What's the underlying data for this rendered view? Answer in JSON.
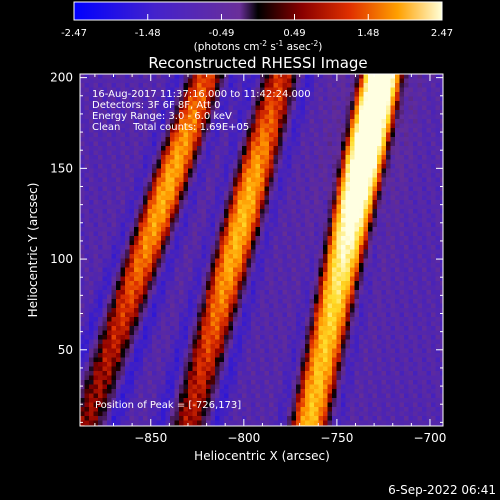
{
  "colorbar": {
    "ticks": [
      "-2.47",
      "-1.48",
      "-0.49",
      "0.49",
      "1.48",
      "2.47"
    ],
    "tick_values": [
      -2.47,
      -1.48,
      -0.49,
      0.49,
      1.48,
      2.47
    ],
    "range": [
      -2.47,
      2.47
    ],
    "unit_label": "(photons cm",
    "unit_exp1": "-2",
    "unit_mid": " s",
    "unit_exp2": "-1",
    "unit_mid2": " asec",
    "unit_exp3": "-2",
    "unit_end": ")"
  },
  "chart_data": {
    "type": "heatmap",
    "title": "Reconstructed RHESSI Image",
    "xlabel": "Heliocentric X (arcsec)",
    "ylabel": "Heliocentric Y (arcsec)",
    "xlim": [
      -888,
      -693
    ],
    "ylim": [
      8,
      202
    ],
    "x_ticks": [
      -850,
      -800,
      -750,
      -700
    ],
    "x_tick_labels": [
      "−850",
      "−800",
      "−750",
      "−700"
    ],
    "y_ticks": [
      50,
      100,
      150,
      200
    ],
    "y_tick_labels": [
      "50",
      "100",
      "150",
      "200"
    ],
    "annotations": [
      "16-Aug-2017 11:37:16.000 to 11:42:24.000",
      "Detectors: 3F 6F 8F, Att 0",
      "Energy Range: 3.0 - 6.0 keV",
      "Clean    Total counts: 1.69E+05"
    ],
    "peak_label": "Position of Peak = [-726,173]",
    "peak": [
      -726,
      173
    ],
    "fringes": [
      {
        "x_top": -820,
        "x_bottom": -885,
        "peak_y": 140,
        "amp": 1.3
      },
      {
        "x_top": -780,
        "x_bottom": -830,
        "peak_y": 120,
        "amp": 1.35
      },
      {
        "x_top": -726,
        "x_bottom": -765,
        "peak_y": 173,
        "amp": 2.47
      }
    ],
    "colormap": "rhessi-blue-purple-red-yellow"
  },
  "footer": {
    "date": "6-Sep-2022 06:41"
  }
}
